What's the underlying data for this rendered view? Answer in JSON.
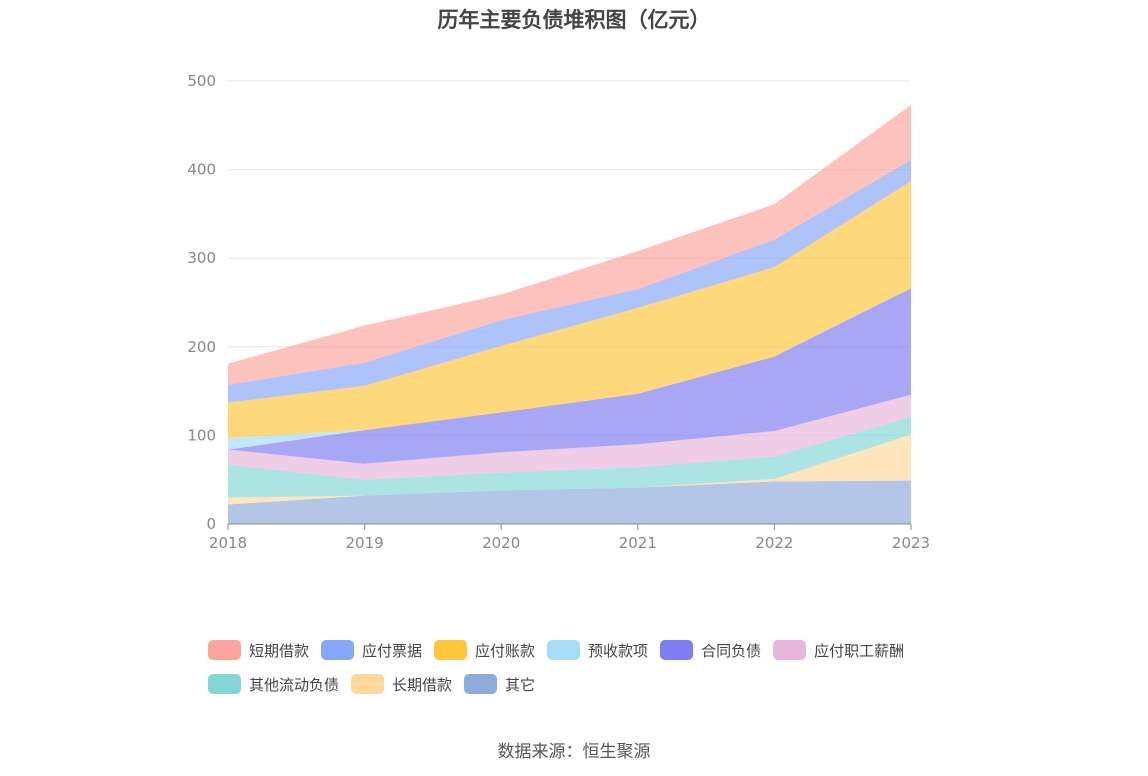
{
  "chart_data": {
    "type": "area",
    "stacked": true,
    "title": "历年主要负债堆积图（亿元）",
    "source": "数据来源：恒生聚源",
    "x": [
      "2018",
      "2019",
      "2020",
      "2021",
      "2022",
      "2023"
    ],
    "ylim": [
      0,
      500
    ],
    "yticks": [
      "0",
      "100",
      "200",
      "300",
      "400",
      "500"
    ],
    "grid": true,
    "legend_position": "bottom",
    "series": [
      {
        "name": "其它",
        "color": "#8fabdb",
        "values": [
          22,
          32,
          38,
          41,
          48,
          49
        ]
      },
      {
        "name": "长期借款",
        "color": "#fed89b",
        "values": [
          8,
          0,
          0,
          0,
          3,
          52
        ]
      },
      {
        "name": "其他流动负债",
        "color": "#84d6d6",
        "values": [
          37,
          18,
          20,
          23,
          25,
          20
        ]
      },
      {
        "name": "应付职工薪酬",
        "color": "#e8b6da",
        "values": [
          17,
          18,
          23,
          26,
          29,
          25
        ]
      },
      {
        "name": "合同负债",
        "color": "#7e7ef2",
        "values": [
          0,
          38,
          45,
          57,
          84,
          120
        ]
      },
      {
        "name": "预收款项",
        "color": "#a7dcf8",
        "values": [
          13,
          0,
          0,
          0,
          0,
          0
        ]
      },
      {
        "name": "应付账款",
        "color": "#fec63d",
        "values": [
          40,
          50,
          75,
          97,
          101,
          121
        ]
      },
      {
        "name": "应付票据",
        "color": "#87a7f8",
        "values": [
          20,
          26,
          29,
          21,
          31,
          24
        ]
      },
      {
        "name": "短期借款",
        "color": "#fba59b",
        "values": [
          24,
          42,
          29,
          43,
          40,
          62
        ]
      }
    ],
    "legend_order": [
      "短期借款",
      "应付票据",
      "应付账款",
      "预收款项",
      "合同负债",
      "应付职工薪酬",
      "其他流动负债",
      "长期借款",
      "其它"
    ]
  }
}
